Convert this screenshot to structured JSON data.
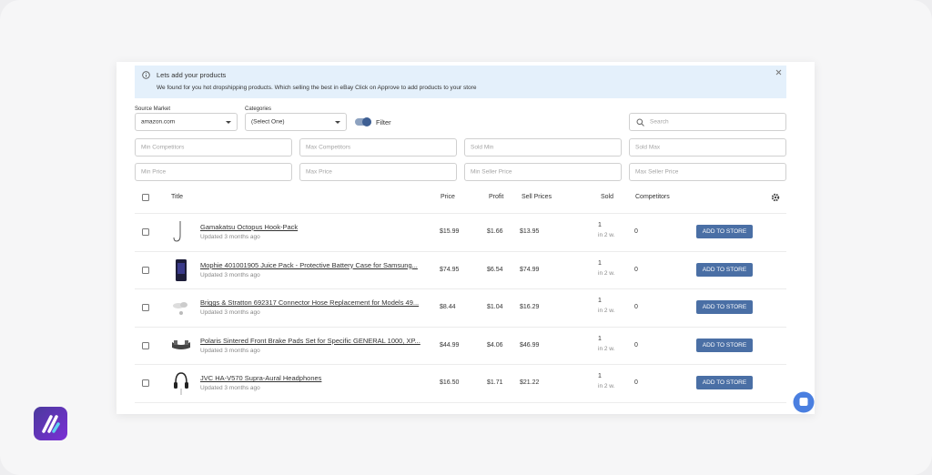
{
  "banner": {
    "title": "Lets add your products",
    "text": "We found for you hot dropshipping products. Which selling the best in eBay Click on Approve to add products to your store"
  },
  "filters": {
    "source_market": {
      "label": "Source Market",
      "value": "amazon.com"
    },
    "categories": {
      "label": "Categories",
      "value": "(Select One)"
    },
    "toggle": "Filter",
    "search": "Search",
    "placeholders": [
      "Min Competitors",
      "Max Competitors",
      "Sold Min",
      "Sold Max",
      "Min Price",
      "Max Price",
      "Min Seller Price",
      "Max Seller Price"
    ]
  },
  "table": {
    "columns": [
      "Title",
      "Price",
      "Profit",
      "Sell Prices",
      "Sold",
      "Competitors"
    ],
    "rows": [
      {
        "title": "Gamakatsu Octopus Hook-Pack",
        "updated": "Updated 3 months ago",
        "price": "$15.99",
        "profit": "$1.66",
        "sell_price": "$13.95",
        "sold": "1",
        "sold_period": "in 2 w.",
        "competitors": "0",
        "action": "ADD TO STORE"
      },
      {
        "title": "Mophie 401001905 Juice Pack - Protective Battery Case for Samsung...",
        "updated": "Updated 3 months ago",
        "price": "$74.95",
        "profit": "$6.54",
        "sell_price": "$74.99",
        "sold": "1",
        "sold_period": "in 2 w.",
        "competitors": "0",
        "action": "ADD TO STORE"
      },
      {
        "title": "Briggs & Stratton 692317 Connector Hose Replacement for Models 49...",
        "updated": "Updated 3 months ago",
        "price": "$8.44",
        "profit": "$1.04",
        "sell_price": "$16.29",
        "sold": "1",
        "sold_period": "in 2 w.",
        "competitors": "0",
        "action": "ADD TO STORE"
      },
      {
        "title": "Polaris Sintered Front Brake Pads Set for Specific GENERAL 1000, XP...",
        "updated": "Updated 3 months ago",
        "price": "$44.99",
        "profit": "$4.06",
        "sell_price": "$46.99",
        "sold": "1",
        "sold_period": "in 2 w.",
        "competitors": "0",
        "action": "ADD TO STORE"
      },
      {
        "title": "JVC HA-V570 Supra-Aural Headphones",
        "updated": "Updated 3 months ago",
        "price": "$16.50",
        "profit": "$1.71",
        "sell_price": "$21.22",
        "sold": "1",
        "sold_period": "in 2 w.",
        "competitors": "0",
        "action": "ADD TO STORE"
      }
    ]
  }
}
